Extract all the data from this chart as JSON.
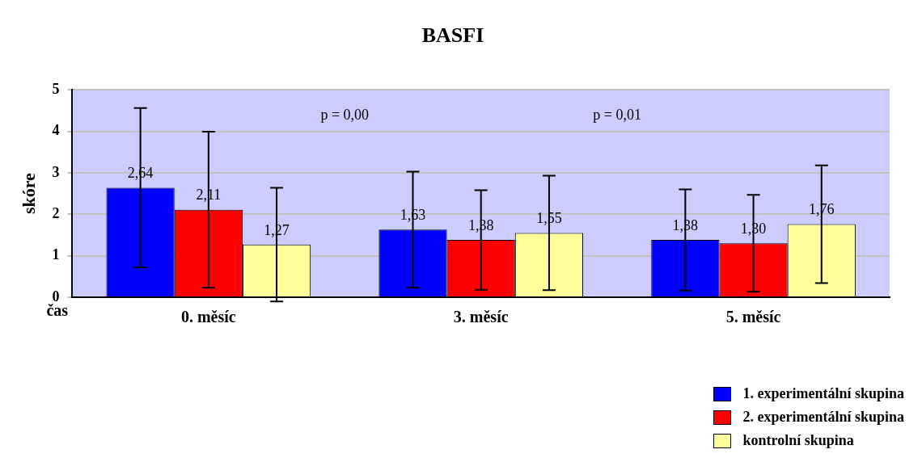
{
  "chart_data": {
    "type": "bar",
    "title": "BASFI",
    "xlabel": "čas",
    "ylabel": "skóre",
    "categories": [
      "0. měsíc",
      "3. měsíc",
      "5. měsíc"
    ],
    "series": [
      {
        "name": "1. experimentální skupina",
        "color": "#0000ff",
        "values": [
          2.64,
          1.63,
          1.38
        ],
        "errors": [
          1.92,
          1.4,
          1.22
        ],
        "value_labels": [
          "2,64",
          "1,63",
          "1,38"
        ]
      },
      {
        "name": "2. experimentální skupina",
        "color": "#ff0000",
        "values": [
          2.11,
          1.38,
          1.3
        ],
        "errors": [
          1.88,
          1.2,
          1.17
        ],
        "value_labels": [
          "2,11",
          "1,38",
          "1,30"
        ]
      },
      {
        "name": "kontrolní skupina",
        "color": "#ffff99",
        "values": [
          1.27,
          1.55,
          1.76
        ],
        "errors": [
          1.37,
          1.38,
          1.42
        ],
        "value_labels": [
          "1,27",
          "1,55",
          "1,76"
        ]
      }
    ],
    "annotations": [
      "p = 0,00",
      "p = 0,01"
    ],
    "ylim": [
      0,
      5
    ],
    "yticks": [
      0,
      1,
      2,
      3,
      4,
      5
    ],
    "grid": "y",
    "legend": "bottom right"
  }
}
